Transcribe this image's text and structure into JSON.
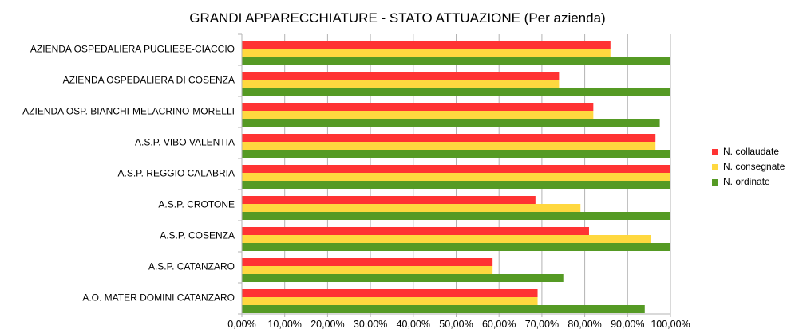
{
  "chart_data": {
    "type": "bar",
    "orientation": "horizontal",
    "title": "GRANDI APPARECCHIATURE - STATO ATTUAZIONE (Per azienda)",
    "categories": [
      "AZIENDA OSPEDALIERA PUGLIESE-CIACCIO",
      "AZIENDA OSPEDALIERA DI COSENZA",
      "AZIENDA OSP.  BIANCHI-MELACRINO-MORELLI",
      "A.S.P. VIBO VALENTIA",
      "A.S.P. REGGIO CALABRIA",
      "A.S.P. CROTONE",
      "A.S.P. COSENZA",
      "A.S.P. CATANZARO",
      "A.O. MATER DOMINI CATANZARO"
    ],
    "series": [
      {
        "name": "N. collaudate",
        "color": "#ff3333",
        "values": [
          86,
          74,
          82,
          96.5,
          100,
          68.5,
          81,
          58.5,
          69
        ]
      },
      {
        "name": "N. consegnate",
        "color": "#ffd83f",
        "values": [
          86,
          74,
          82,
          96.5,
          100,
          79,
          95.5,
          58.5,
          69
        ]
      },
      {
        "name": "N. ordinate",
        "color": "#559a24",
        "values": [
          100,
          100,
          97.5,
          100,
          100,
          100,
          100,
          75,
          94
        ]
      }
    ],
    "xlim": [
      0,
      100
    ],
    "xticks": [
      "0,00%",
      "10,00%",
      "20,00%",
      "30,00%",
      "40,00%",
      "50,00%",
      "60,00%",
      "70,00%",
      "80,00%",
      "90,00%",
      "100,00%"
    ],
    "grid": true,
    "legend_position": "right"
  }
}
